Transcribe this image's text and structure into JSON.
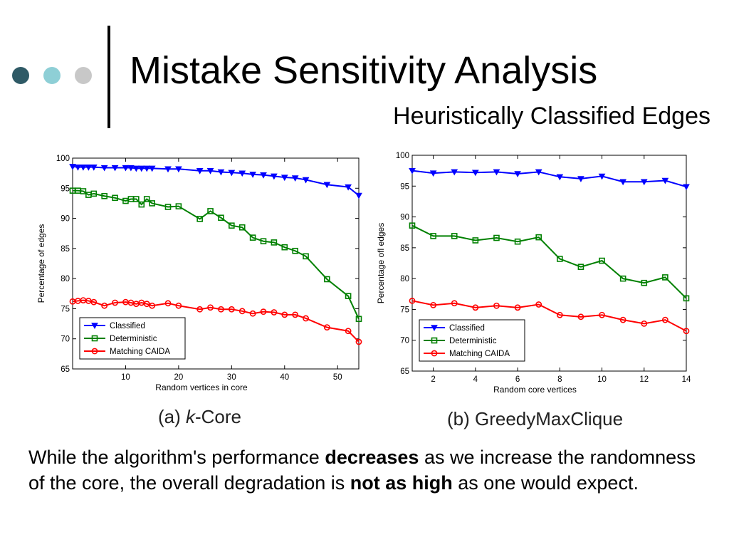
{
  "slide": {
    "title": "Mistake Sensitivity Analysis",
    "subtitle": "Heuristically Classified Edges",
    "paragraph": {
      "part1": "While the algorithm's performance ",
      "bold1": "decreases",
      "part2": " as we increase the randomness of the core, the overall degradation is ",
      "bold2": "not as high",
      "part3": " as one would expect."
    },
    "decor_colors": [
      "#2f5a66",
      "#8ecfd6",
      "#c8c8c8"
    ]
  },
  "chart_data": [
    {
      "type": "line",
      "caption_prefix": "(a) ",
      "caption_italic": "k",
      "caption_suffix": "-Core",
      "xlabel": "Random vertices in core",
      "ylabel": "Percentage of edges",
      "xlim": [
        0,
        54
      ],
      "ylim": [
        65,
        100
      ],
      "xticks": [
        10,
        20,
        30,
        40,
        50
      ],
      "yticks": [
        65,
        70,
        75,
        80,
        85,
        90,
        95,
        100
      ],
      "grid": false,
      "legend_position": "bottom-left",
      "series": [
        {
          "name": "Classified",
          "color": "#0000ff",
          "marker": "triangle-down",
          "x": [
            0,
            1,
            2,
            3,
            4,
            6,
            8,
            10,
            11,
            12,
            13,
            14,
            15,
            18,
            20,
            24,
            26,
            28,
            30,
            32,
            34,
            36,
            38,
            40,
            42,
            44,
            48,
            52,
            54
          ],
          "y": [
            98.6,
            98.5,
            98.5,
            98.5,
            98.5,
            98.4,
            98.4,
            98.4,
            98.4,
            98.3,
            98.3,
            98.3,
            98.3,
            98.2,
            98.2,
            97.9,
            97.9,
            97.7,
            97.6,
            97.5,
            97.3,
            97.2,
            97.0,
            96.8,
            96.7,
            96.4,
            95.6,
            95.2,
            93.8
          ]
        },
        {
          "name": "Deterministic",
          "color": "#008000",
          "marker": "square",
          "x": [
            0,
            1,
            2,
            3,
            4,
            6,
            8,
            10,
            11,
            12,
            13,
            14,
            15,
            18,
            20,
            24,
            26,
            28,
            30,
            32,
            34,
            36,
            38,
            40,
            42,
            44,
            48,
            52,
            54
          ],
          "y": [
            94.6,
            94.6,
            94.5,
            93.9,
            94.1,
            93.7,
            93.4,
            92.9,
            93.2,
            93.2,
            92.3,
            93.2,
            92.5,
            91.9,
            92.0,
            89.9,
            91.2,
            90.1,
            88.8,
            88.5,
            86.8,
            86.2,
            86.0,
            85.2,
            84.6,
            83.7,
            79.9,
            77.1,
            73.3
          ]
        },
        {
          "name": "Matching CAIDA",
          "color": "#ff0000",
          "marker": "circle",
          "x": [
            0,
            1,
            2,
            3,
            4,
            6,
            8,
            10,
            11,
            12,
            13,
            14,
            15,
            18,
            20,
            24,
            26,
            28,
            30,
            32,
            34,
            36,
            38,
            40,
            42,
            44,
            48,
            52,
            54
          ],
          "y": [
            76.2,
            76.3,
            76.4,
            76.3,
            76.1,
            75.5,
            76.0,
            76.1,
            76.0,
            75.8,
            76.0,
            75.8,
            75.5,
            75.9,
            75.5,
            74.9,
            75.2,
            74.9,
            74.9,
            74.6,
            74.2,
            74.5,
            74.4,
            74.0,
            74.0,
            73.4,
            71.9,
            71.3,
            69.5
          ]
        }
      ]
    },
    {
      "type": "line",
      "caption_prefix": "(b) ",
      "caption_italic": "",
      "caption_suffix": "GreedyMaxClique",
      "xlabel": "Random core vertices",
      "ylabel": "Percentage ofl edges",
      "xlim": [
        1,
        14
      ],
      "ylim": [
        65,
        100
      ],
      "xticks": [
        2,
        4,
        6,
        8,
        10,
        12,
        14
      ],
      "yticks": [
        65,
        70,
        75,
        80,
        85,
        90,
        95,
        100
      ],
      "grid": false,
      "legend_position": "bottom-left",
      "series": [
        {
          "name": "Classified",
          "color": "#0000ff",
          "marker": "triangle-down",
          "x": [
            1,
            2,
            3,
            4,
            5,
            6,
            7,
            8,
            9,
            10,
            11,
            12,
            13,
            14
          ],
          "y": [
            97.5,
            97.1,
            97.3,
            97.2,
            97.3,
            97.0,
            97.3,
            96.5,
            96.2,
            96.6,
            95.7,
            95.7,
            95.9,
            94.9
          ]
        },
        {
          "name": "Deterministic",
          "color": "#008000",
          "marker": "square",
          "x": [
            1,
            2,
            3,
            4,
            5,
            6,
            7,
            8,
            9,
            10,
            11,
            12,
            13,
            14
          ],
          "y": [
            88.6,
            86.9,
            86.9,
            86.2,
            86.6,
            86.0,
            86.7,
            83.2,
            81.9,
            82.9,
            80.0,
            79.3,
            80.2,
            76.8
          ]
        },
        {
          "name": "Matching CAIDA",
          "color": "#ff0000",
          "marker": "circle",
          "x": [
            1,
            2,
            3,
            4,
            5,
            6,
            7,
            8,
            9,
            10,
            11,
            12,
            13,
            14
          ],
          "y": [
            76.4,
            75.7,
            76.0,
            75.3,
            75.6,
            75.3,
            75.8,
            74.1,
            73.8,
            74.1,
            73.3,
            72.7,
            73.3,
            71.5
          ]
        }
      ]
    }
  ]
}
